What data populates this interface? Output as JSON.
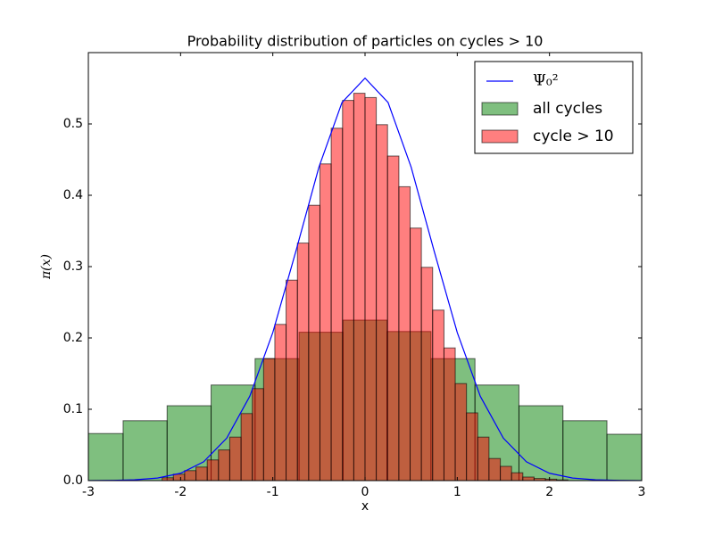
{
  "chart_data": {
    "type": "histogram",
    "title": "Probability distribution of particles on cycles >  10",
    "xlabel": "x",
    "ylabel": "π(x)",
    "xlim": [
      -3,
      3
    ],
    "ylim": [
      0,
      0.6
    ],
    "xticks": [
      -3,
      -2,
      -1,
      0,
      1,
      2,
      3
    ],
    "yticks": [
      {
        "value": 0,
        "label": "0.0"
      },
      0.1,
      0.2,
      0.3,
      0.4,
      0.5
    ],
    "legend": "upper right",
    "series": [
      {
        "name": "Ψ₀²",
        "type": "line",
        "color": "#0000ff",
        "x": [
          -3,
          -2.75,
          -2.5,
          -2.25,
          -2,
          -1.75,
          -1.5,
          -1.25,
          -1,
          -0.75,
          -0.5,
          -0.25,
          0,
          0.25,
          0.5,
          0.75,
          1,
          1.25,
          1.5,
          1.75,
          2,
          2.25,
          2.5,
          2.75,
          3
        ],
        "values": [
          0.0001,
          0.0003,
          0.0011,
          0.0036,
          0.0103,
          0.0264,
          0.0595,
          0.1182,
          0.2076,
          0.3215,
          0.4394,
          0.53,
          0.5642,
          0.53,
          0.4394,
          0.3215,
          0.2076,
          0.1182,
          0.0595,
          0.0264,
          0.0103,
          0.0036,
          0.0011,
          0.0003,
          0.0001
        ]
      },
      {
        "name": "all cycles",
        "type": "histogram",
        "color": "#008000",
        "bins": [
          -3.1,
          -2.623,
          -2.146,
          -1.669,
          -1.192,
          -0.715,
          -0.238,
          0.238,
          0.715,
          1.192,
          1.669,
          2.146,
          2.623,
          3.1
        ],
        "values": [
          0.066,
          0.084,
          0.105,
          0.134,
          0.171,
          0.208,
          0.225,
          0.209,
          0.171,
          0.134,
          0.105,
          0.084,
          0.065
        ]
      },
      {
        "name": "cycle > 10",
        "type": "histogram",
        "color": "#ff0000",
        "bins": [
          -2.2,
          -2.078,
          -1.956,
          -1.833,
          -1.711,
          -1.589,
          -1.467,
          -1.344,
          -1.222,
          -1.1,
          -0.978,
          -0.856,
          -0.733,
          -0.611,
          -0.489,
          -0.367,
          -0.244,
          -0.122,
          0,
          0.122,
          0.244,
          0.367,
          0.489,
          0.611,
          0.733,
          0.856,
          0.978,
          1.1,
          1.222,
          1.344,
          1.467,
          1.589,
          1.711,
          1.833,
          1.956,
          2.078,
          2.2
        ],
        "values": [
          0.004,
          0.009,
          0.014,
          0.019,
          0.029,
          0.043,
          0.061,
          0.094,
          0.129,
          0.171,
          0.219,
          0.281,
          0.333,
          0.386,
          0.444,
          0.494,
          0.533,
          0.543,
          0.537,
          0.499,
          0.455,
          0.412,
          0.354,
          0.299,
          0.239,
          0.186,
          0.136,
          0.095,
          0.061,
          0.031,
          0.02,
          0.011,
          0.005,
          0.003,
          0.002,
          0.001
        ]
      }
    ]
  }
}
